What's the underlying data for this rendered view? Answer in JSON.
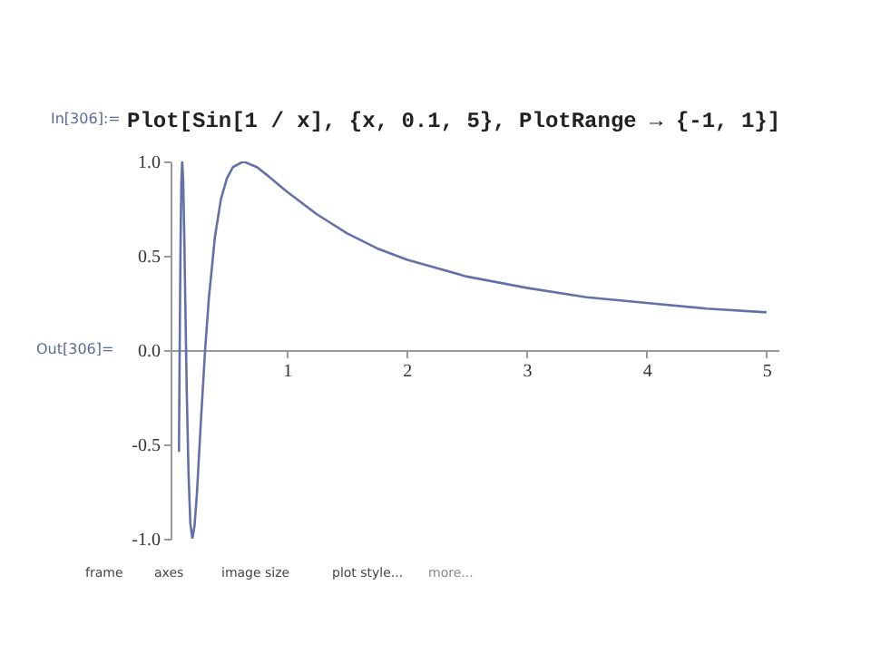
{
  "chart_data": {
    "type": "line",
    "title": "Plot[Sin[1 / x], {x, 0.1, 5}, PlotRange → {-1, 1}]",
    "annotations": [
      "In[306]:=",
      "Out[306]=",
      "frame",
      "axes",
      "image size",
      "plot style...",
      "more..."
    ],
    "x": [
      0.1,
      0.105,
      0.11,
      0.115,
      0.12,
      0.127,
      0.135,
      0.145,
      0.155,
      0.165,
      0.18,
      0.195,
      0.212,
      0.23,
      0.25,
      0.28,
      0.318,
      0.35,
      0.4,
      0.45,
      0.5,
      0.55,
      0.637,
      0.75,
      0.85,
      1,
      1.25,
      1.5,
      1.75,
      2,
      2.5,
      3,
      3.5,
      4,
      4.5,
      5
    ],
    "series": [
      {
        "color": "#6470a8",
        "values": [
          -0.54,
          -0.08,
          0.33,
          0.66,
          0.89,
          1.0,
          0.9,
          0.58,
          0.17,
          -0.22,
          -0.66,
          -0.92,
          -1.0,
          -0.93,
          -0.76,
          -0.41,
          0.0,
          0.28,
          0.6,
          0.8,
          0.91,
          0.97,
          1.0,
          0.97,
          0.92,
          0.84,
          0.72,
          0.62,
          0.54,
          0.48,
          0.39,
          0.33,
          0.28,
          0.25,
          0.22,
          0.2
        ]
      }
    ],
    "xlim": [
      0.03,
      5.1
    ],
    "xticks": [
      1,
      2,
      3,
      4,
      5
    ],
    "ylim": [
      -1,
      1
    ],
    "yticks": [
      {
        "value": -1,
        "label": "-1.0"
      },
      {
        "value": -0.5,
        "label": "-0.5"
      },
      {
        "value": 0,
        "label": "0.0"
      },
      {
        "value": 0.5,
        "label": "0.5"
      },
      {
        "value": 1,
        "label": "1.0"
      }
    ],
    "grid": false,
    "marker": "none",
    "line_style": "solid"
  }
}
